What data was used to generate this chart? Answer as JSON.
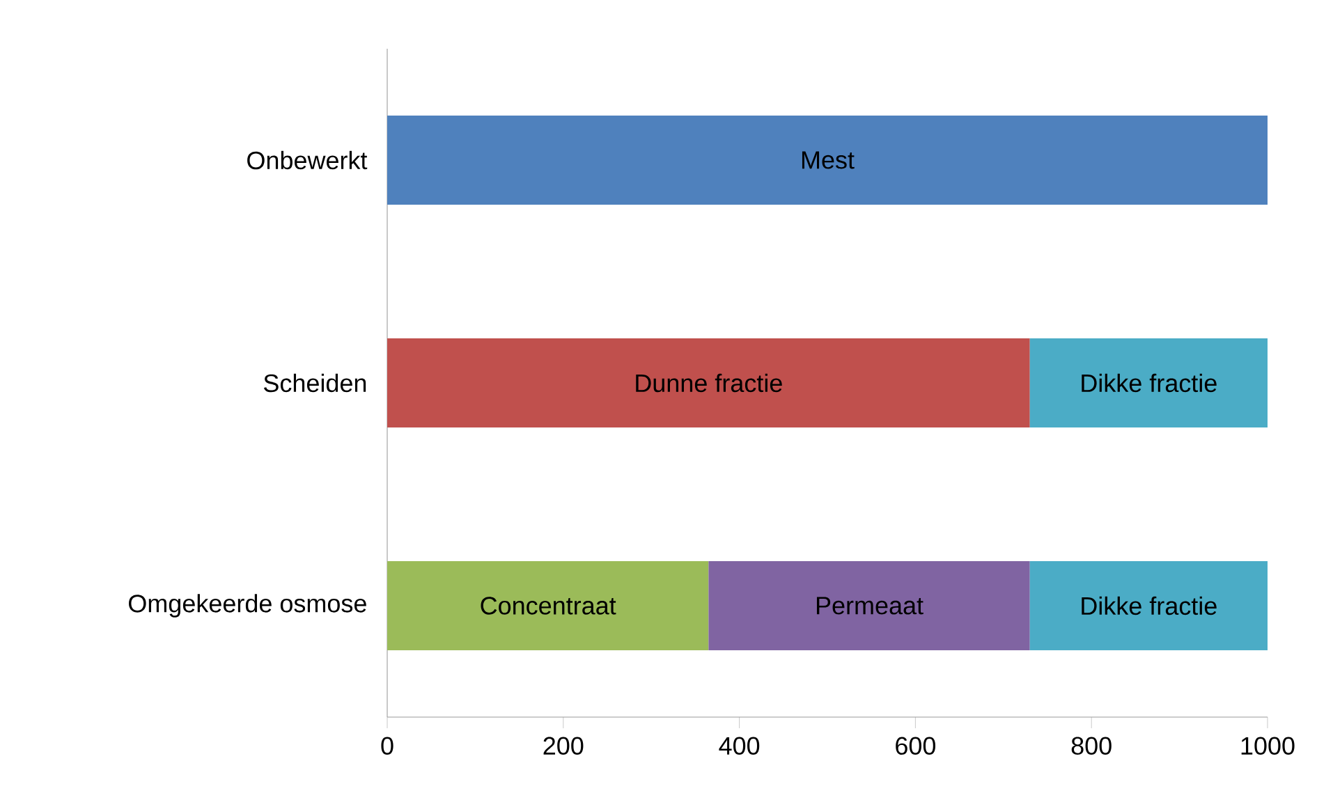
{
  "chart_data": {
    "type": "bar",
    "orientation": "horizontal",
    "stacked": true,
    "grid": false,
    "categories": [
      "Onbewerkt",
      "Scheiden",
      "Omgekeerde osmose"
    ],
    "series": [
      {
        "name": "Mest",
        "color": "#4f81bd",
        "values": [
          1000,
          null,
          null
        ]
      },
      {
        "name": "Dunne fractie",
        "color": "#c0504d",
        "values": [
          null,
          730,
          null
        ]
      },
      {
        "name": "Concentraat",
        "color": "#9bbb59",
        "values": [
          null,
          null,
          365
        ]
      },
      {
        "name": "Permeaat",
        "color": "#8064a2",
        "values": [
          null,
          null,
          365
        ]
      },
      {
        "name": "Dikke fractie",
        "color": "#4bacc6",
        "values": [
          null,
          270,
          270
        ]
      }
    ],
    "xlim": [
      0,
      1000
    ],
    "xticks": [
      0,
      200,
      400,
      600,
      800,
      1000
    ]
  }
}
